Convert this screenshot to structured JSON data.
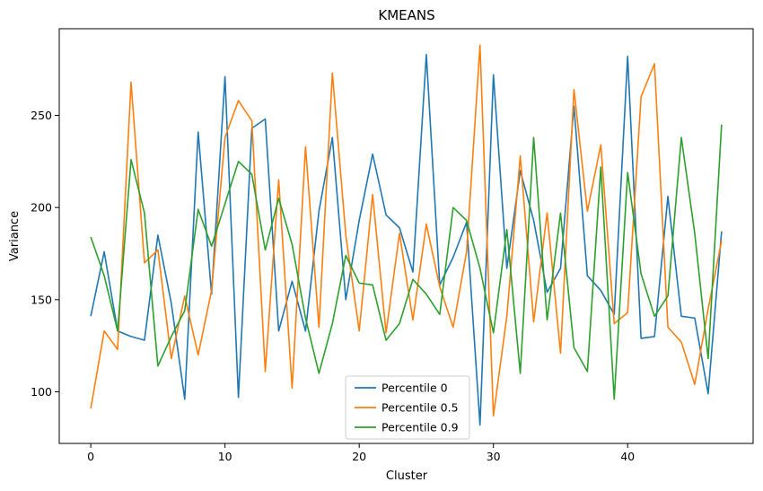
{
  "chart_data": {
    "type": "line",
    "title": "KMEANS",
    "xlabel": "Cluster",
    "ylabel": "Variance",
    "xlim": [
      -2.35,
      49.35
    ],
    "ylim": [
      72,
      297
    ],
    "xticks": [
      0,
      10,
      20,
      30,
      40
    ],
    "yticks": [
      100,
      150,
      200,
      250
    ],
    "grid": false,
    "legend_position": "lower-center",
    "x": [
      0,
      1,
      2,
      3,
      4,
      5,
      6,
      7,
      8,
      9,
      10,
      11,
      12,
      13,
      14,
      15,
      16,
      17,
      18,
      19,
      20,
      21,
      22,
      23,
      24,
      25,
      26,
      27,
      28,
      29,
      30,
      31,
      32,
      33,
      34,
      35,
      36,
      37,
      38,
      39,
      40,
      41,
      42,
      43,
      44,
      45,
      46,
      47
    ],
    "series": [
      {
        "name": "Percentile 0",
        "color": "#1f77b4",
        "values": [
          141,
          176,
          133,
          130,
          128,
          185,
          148,
          96,
          241,
          153,
          271,
          97,
          243,
          248,
          133,
          160,
          133,
          198,
          238,
          150,
          193,
          229,
          196,
          189,
          165,
          283,
          158,
          173,
          192,
          82,
          272,
          167,
          220,
          193,
          154,
          167,
          255,
          163,
          155,
          142,
          282,
          129,
          130,
          206,
          141,
          140,
          99,
          187
        ]
      },
      {
        "name": "Percentile 0.5",
        "color": "#ff7f0e",
        "values": [
          91,
          133,
          123,
          268,
          170,
          177,
          118,
          152,
          120,
          155,
          238,
          258,
          247,
          111,
          215,
          102,
          233,
          135,
          273,
          185,
          133,
          207,
          132,
          186,
          139,
          191,
          157,
          135,
          176,
          288,
          87,
          141,
          228,
          138,
          197,
          121,
          264,
          198,
          234,
          137,
          143,
          260,
          278,
          135,
          127,
          104,
          145,
          182
        ]
      },
      {
        "name": "Percentile 0.9",
        "color": "#2ca02c",
        "values": [
          184,
          163,
          133,
          226,
          197,
          114,
          130,
          144,
          199,
          179,
          202,
          225,
          218,
          177,
          205,
          180,
          140,
          110,
          137,
          174,
          159,
          158,
          128,
          137,
          161,
          153,
          142,
          200,
          193,
          167,
          132,
          188,
          110,
          238,
          139,
          197,
          124,
          111,
          222,
          96,
          219,
          164,
          141,
          152,
          238,
          186,
          118,
          245
        ]
      }
    ]
  }
}
